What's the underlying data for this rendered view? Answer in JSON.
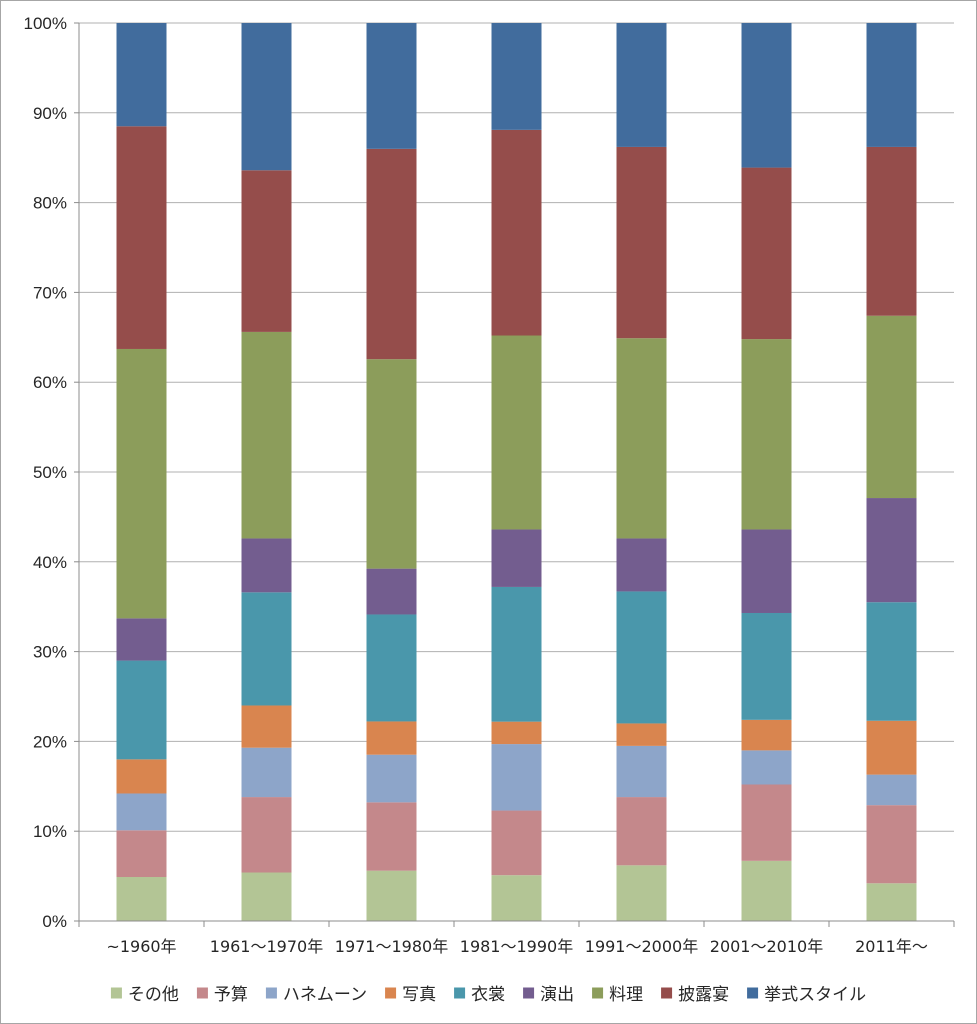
{
  "chart_data": {
    "type": "bar",
    "stacked": true,
    "percent": true,
    "categories": [
      "~1960年",
      "1961～1970年",
      "1971～1980年",
      "1981～1990年",
      "1991～2000年",
      "2001～2010年",
      "2011年～"
    ],
    "y_ticks": [
      "0%",
      "10%",
      "20%",
      "30%",
      "40%",
      "50%",
      "60%",
      "70%",
      "80%",
      "90%",
      "100%"
    ],
    "ylim": [
      0,
      100
    ],
    "grid": true,
    "legend_position": "bottom",
    "series": [
      {
        "name": "その他",
        "color": "#b3c595",
        "values": [
          4.9,
          5.4,
          5.6,
          5.1,
          6.2,
          6.7,
          4.2
        ]
      },
      {
        "name": "予算",
        "color": "#c4888b",
        "values": [
          5.2,
          8.4,
          7.6,
          7.2,
          7.6,
          8.5,
          8.7
        ]
      },
      {
        "name": "ハネムーン",
        "color": "#8da5c9",
        "values": [
          4.1,
          5.5,
          5.3,
          7.4,
          5.7,
          3.8,
          3.4
        ]
      },
      {
        "name": "写真",
        "color": "#d9854f",
        "values": [
          3.8,
          4.7,
          3.7,
          2.5,
          2.5,
          3.4,
          6.0
        ]
      },
      {
        "name": "衣裳",
        "color": "#4a97ab",
        "values": [
          11.0,
          12.6,
          11.9,
          15.0,
          14.7,
          11.9,
          13.2
        ]
      },
      {
        "name": "演出",
        "color": "#735d8f",
        "values": [
          4.7,
          6.0,
          5.1,
          6.4,
          5.9,
          9.3,
          11.6
        ]
      },
      {
        "name": "料理",
        "color": "#8c9d5b",
        "values": [
          30.0,
          23.0,
          23.3,
          21.6,
          22.3,
          21.2,
          20.3
        ]
      },
      {
        "name": "披露宴",
        "color": "#954d4b",
        "values": [
          24.8,
          18.0,
          23.4,
          22.9,
          21.3,
          19.1,
          18.8
        ]
      },
      {
        "name": "挙式スタイル",
        "color": "#416c9d",
        "values": [
          11.5,
          16.4,
          14.0,
          11.9,
          13.8,
          16.1,
          13.8
        ]
      }
    ]
  }
}
